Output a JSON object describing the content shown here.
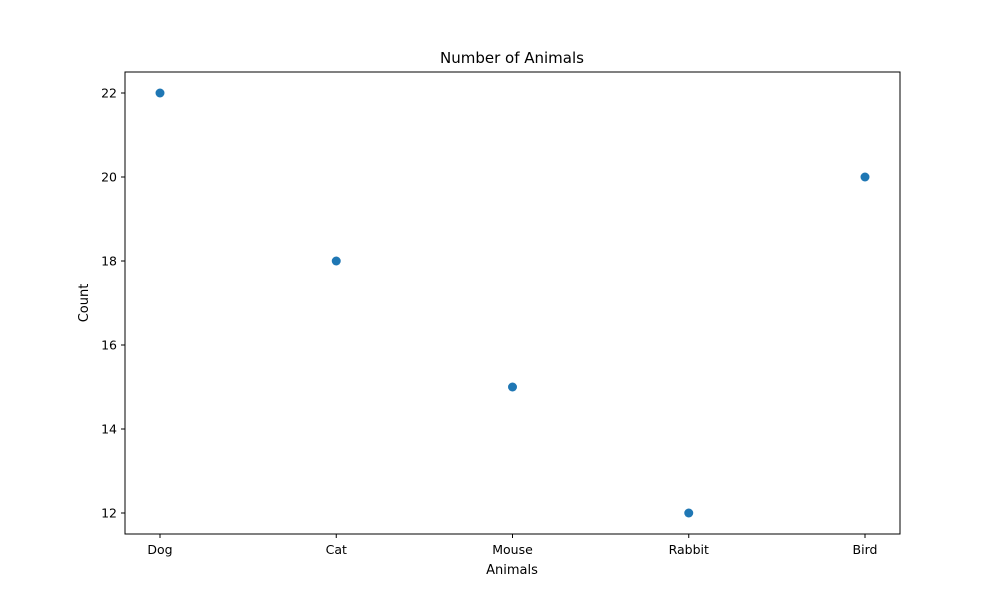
{
  "chart_data": {
    "type": "scatter",
    "title": "Number of Animals",
    "xlabel": "Animals",
    "ylabel": "Count",
    "categories": [
      "Dog",
      "Cat",
      "Mouse",
      "Rabbit",
      "Bird"
    ],
    "values": [
      22,
      18,
      15,
      12,
      20
    ],
    "ylim": [
      11.5,
      22.5
    ],
    "yticks": [
      12,
      14,
      16,
      18,
      20,
      22
    ],
    "grid": false,
    "marker_color": "#1f77b4"
  }
}
